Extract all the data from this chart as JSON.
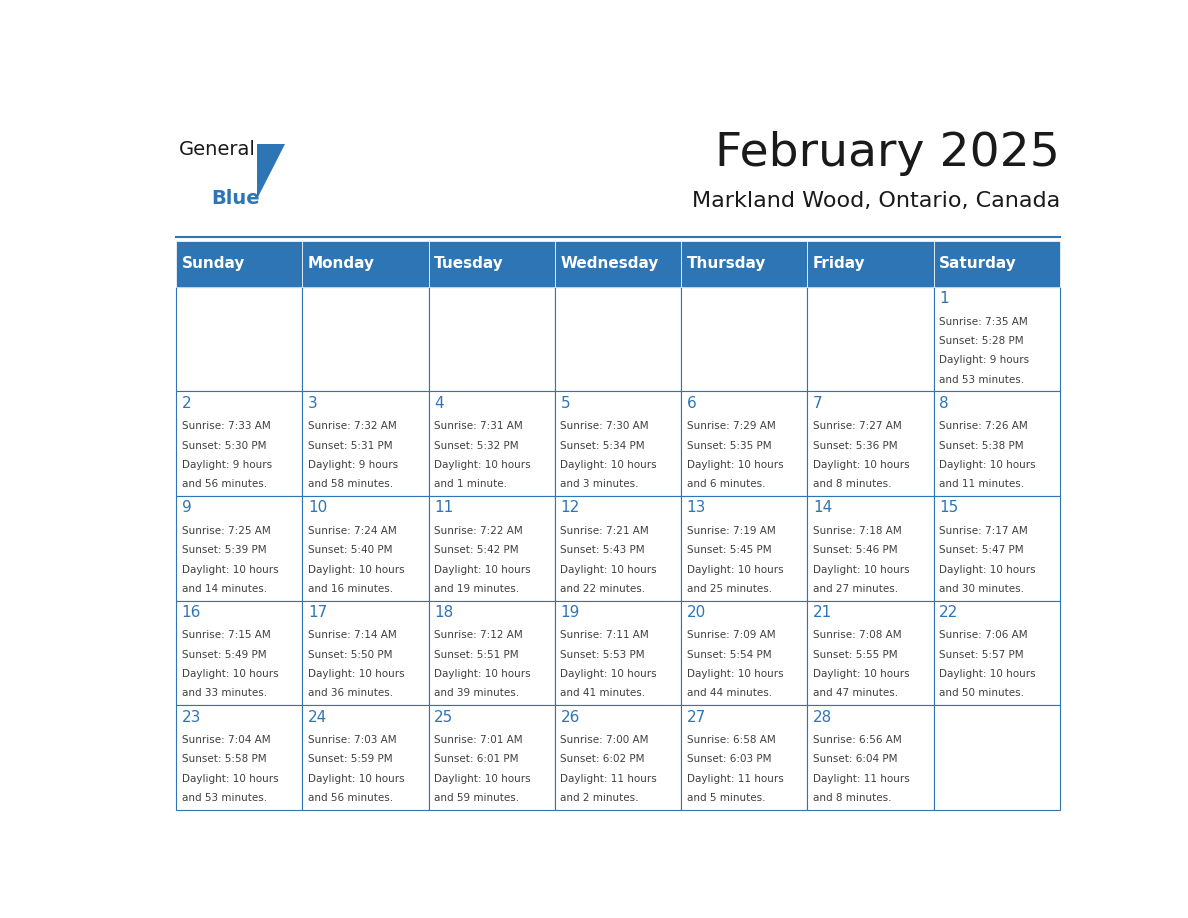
{
  "title": "February 2025",
  "subtitle": "Markland Wood, Ontario, Canada",
  "header_color": "#2E75B6",
  "header_text_color": "#FFFFFF",
  "day_number_color": "#2E75B6",
  "info_text_color": "#404040",
  "border_color": "#2E75B6",
  "cell_bg": "#FFFFFF",
  "days_of_week": [
    "Sunday",
    "Monday",
    "Tuesday",
    "Wednesday",
    "Thursday",
    "Friday",
    "Saturday"
  ],
  "weeks": [
    [
      {
        "day": null,
        "sunrise": null,
        "sunset": null,
        "daylight": null
      },
      {
        "day": null,
        "sunrise": null,
        "sunset": null,
        "daylight": null
      },
      {
        "day": null,
        "sunrise": null,
        "sunset": null,
        "daylight": null
      },
      {
        "day": null,
        "sunrise": null,
        "sunset": null,
        "daylight": null
      },
      {
        "day": null,
        "sunrise": null,
        "sunset": null,
        "daylight": null
      },
      {
        "day": null,
        "sunrise": null,
        "sunset": null,
        "daylight": null
      },
      {
        "day": 1,
        "sunrise": "7:35 AM",
        "sunset": "5:28 PM",
        "daylight": "9 hours and 53 minutes."
      }
    ],
    [
      {
        "day": 2,
        "sunrise": "7:33 AM",
        "sunset": "5:30 PM",
        "daylight": "9 hours and 56 minutes."
      },
      {
        "day": 3,
        "sunrise": "7:32 AM",
        "sunset": "5:31 PM",
        "daylight": "9 hours and 58 minutes."
      },
      {
        "day": 4,
        "sunrise": "7:31 AM",
        "sunset": "5:32 PM",
        "daylight": "10 hours and 1 minute."
      },
      {
        "day": 5,
        "sunrise": "7:30 AM",
        "sunset": "5:34 PM",
        "daylight": "10 hours and 3 minutes."
      },
      {
        "day": 6,
        "sunrise": "7:29 AM",
        "sunset": "5:35 PM",
        "daylight": "10 hours and 6 minutes."
      },
      {
        "day": 7,
        "sunrise": "7:27 AM",
        "sunset": "5:36 PM",
        "daylight": "10 hours and 8 minutes."
      },
      {
        "day": 8,
        "sunrise": "7:26 AM",
        "sunset": "5:38 PM",
        "daylight": "10 hours and 11 minutes."
      }
    ],
    [
      {
        "day": 9,
        "sunrise": "7:25 AM",
        "sunset": "5:39 PM",
        "daylight": "10 hours and 14 minutes."
      },
      {
        "day": 10,
        "sunrise": "7:24 AM",
        "sunset": "5:40 PM",
        "daylight": "10 hours and 16 minutes."
      },
      {
        "day": 11,
        "sunrise": "7:22 AM",
        "sunset": "5:42 PM",
        "daylight": "10 hours and 19 minutes."
      },
      {
        "day": 12,
        "sunrise": "7:21 AM",
        "sunset": "5:43 PM",
        "daylight": "10 hours and 22 minutes."
      },
      {
        "day": 13,
        "sunrise": "7:19 AM",
        "sunset": "5:45 PM",
        "daylight": "10 hours and 25 minutes."
      },
      {
        "day": 14,
        "sunrise": "7:18 AM",
        "sunset": "5:46 PM",
        "daylight": "10 hours and 27 minutes."
      },
      {
        "day": 15,
        "sunrise": "7:17 AM",
        "sunset": "5:47 PM",
        "daylight": "10 hours and 30 minutes."
      }
    ],
    [
      {
        "day": 16,
        "sunrise": "7:15 AM",
        "sunset": "5:49 PM",
        "daylight": "10 hours and 33 minutes."
      },
      {
        "day": 17,
        "sunrise": "7:14 AM",
        "sunset": "5:50 PM",
        "daylight": "10 hours and 36 minutes."
      },
      {
        "day": 18,
        "sunrise": "7:12 AM",
        "sunset": "5:51 PM",
        "daylight": "10 hours and 39 minutes."
      },
      {
        "day": 19,
        "sunrise": "7:11 AM",
        "sunset": "5:53 PM",
        "daylight": "10 hours and 41 minutes."
      },
      {
        "day": 20,
        "sunrise": "7:09 AM",
        "sunset": "5:54 PM",
        "daylight": "10 hours and 44 minutes."
      },
      {
        "day": 21,
        "sunrise": "7:08 AM",
        "sunset": "5:55 PM",
        "daylight": "10 hours and 47 minutes."
      },
      {
        "day": 22,
        "sunrise": "7:06 AM",
        "sunset": "5:57 PM",
        "daylight": "10 hours and 50 minutes."
      }
    ],
    [
      {
        "day": 23,
        "sunrise": "7:04 AM",
        "sunset": "5:58 PM",
        "daylight": "10 hours and 53 minutes."
      },
      {
        "day": 24,
        "sunrise": "7:03 AM",
        "sunset": "5:59 PM",
        "daylight": "10 hours and 56 minutes."
      },
      {
        "day": 25,
        "sunrise": "7:01 AM",
        "sunset": "6:01 PM",
        "daylight": "10 hours and 59 minutes."
      },
      {
        "day": 26,
        "sunrise": "7:00 AM",
        "sunset": "6:02 PM",
        "daylight": "11 hours and 2 minutes."
      },
      {
        "day": 27,
        "sunrise": "6:58 AM",
        "sunset": "6:03 PM",
        "daylight": "11 hours and 5 minutes."
      },
      {
        "day": 28,
        "sunrise": "6:56 AM",
        "sunset": "6:04 PM",
        "daylight": "11 hours and 8 minutes."
      },
      {
        "day": null,
        "sunrise": null,
        "sunset": null,
        "daylight": null
      }
    ]
  ],
  "logo_text_general": "General",
  "logo_text_blue": "Blue",
  "logo_color_general": "#1a1a1a",
  "logo_color_blue": "#2E75B6",
  "logo_triangle_color": "#2E75B6",
  "title_fontsize": 34,
  "subtitle_fontsize": 16,
  "header_fontsize": 11,
  "day_num_fontsize": 11,
  "info_fontsize": 7.5
}
